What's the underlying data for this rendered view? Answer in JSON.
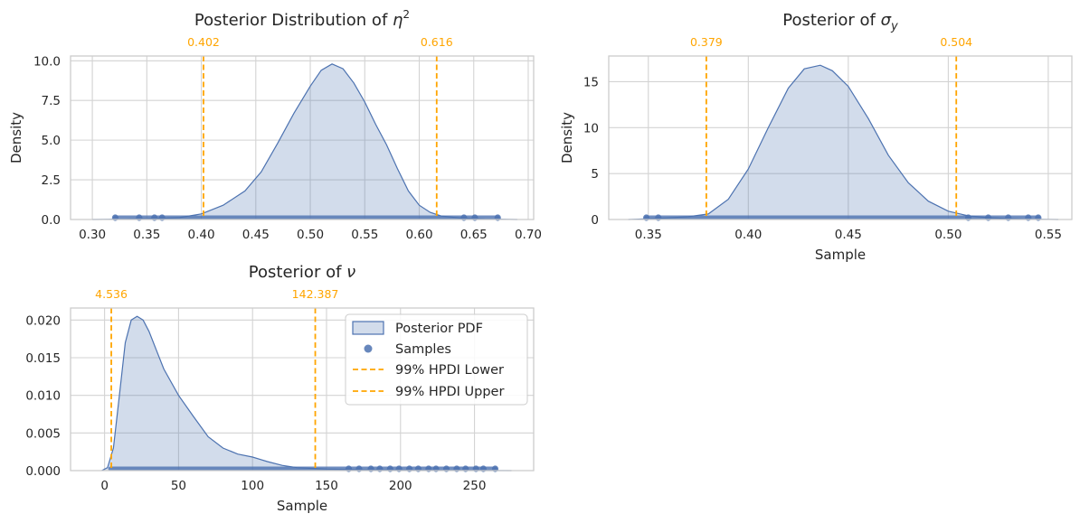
{
  "colors": {
    "fill": "#4C72B0",
    "line": "#4C72B0",
    "samples": "#4C72B0",
    "hpdi": "#FFA500",
    "grid": "#d3d3d3",
    "spine": "#cccccc"
  },
  "chart_data": [
    {
      "type": "area",
      "title": "Posterior Distribution of η²",
      "xlabel": "",
      "ylabel": "Density",
      "xlim": [
        0.28,
        0.705
      ],
      "ylim": [
        0,
        10.3
      ],
      "xticks": [
        0.3,
        0.35,
        0.4,
        0.45,
        0.5,
        0.55,
        0.6,
        0.65,
        0.7
      ],
      "xtick_labels": [
        "0.30",
        "0.35",
        "0.40",
        "0.45",
        "0.50",
        "0.55",
        "0.60",
        "0.65",
        "0.70"
      ],
      "yticks": [
        0,
        2.5,
        5,
        7.5,
        10
      ],
      "ytick_labels": [
        "0.0",
        "2.5",
        "5.0",
        "7.5",
        "10.0"
      ],
      "hpdi": [
        0.402,
        0.616
      ],
      "hpdi_labels": [
        "0.402",
        "0.616"
      ],
      "density": {
        "x": [
          0.3,
          0.33,
          0.36,
          0.38,
          0.4,
          0.42,
          0.44,
          0.455,
          0.47,
          0.485,
          0.5,
          0.51,
          0.52,
          0.53,
          0.54,
          0.55,
          0.56,
          0.57,
          0.58,
          0.59,
          0.6,
          0.61,
          0.62,
          0.64,
          0.66,
          0.69
        ],
        "y": [
          0.0,
          0.02,
          0.06,
          0.12,
          0.35,
          0.9,
          1.8,
          3.0,
          4.8,
          6.7,
          8.4,
          9.4,
          9.8,
          9.5,
          8.6,
          7.4,
          6.0,
          4.7,
          3.2,
          1.8,
          0.9,
          0.45,
          0.22,
          0.08,
          0.03,
          0.0
        ]
      },
      "samples_range": [
        0.321,
        0.672
      ],
      "samples_outliers": [
        0.321,
        0.343,
        0.357,
        0.364,
        0.641,
        0.651,
        0.672
      ]
    },
    {
      "type": "area",
      "title": "Posterior of σ_y",
      "xlabel": "Sample",
      "ylabel": "Density",
      "xlim": [
        0.3302,
        0.5618
      ],
      "ylim": [
        0,
        17.8
      ],
      "xticks": [
        0.35,
        0.4,
        0.45,
        0.5,
        0.55
      ],
      "xtick_labels": [
        "0.35",
        "0.40",
        "0.45",
        "0.50",
        "0.55"
      ],
      "yticks": [
        0,
        5,
        10,
        15
      ],
      "ytick_labels": [
        "0",
        "5",
        "10",
        "15"
      ],
      "hpdi": [
        0.379,
        0.504
      ],
      "hpdi_labels": [
        "0.379",
        "0.504"
      ],
      "density": {
        "x": [
          0.34,
          0.35,
          0.36,
          0.37,
          0.38,
          0.39,
          0.4,
          0.41,
          0.42,
          0.428,
          0.436,
          0.442,
          0.45,
          0.46,
          0.47,
          0.48,
          0.49,
          0.5,
          0.51,
          0.52,
          0.53,
          0.54,
          0.555
        ],
        "y": [
          0.0,
          0.08,
          0.18,
          0.3,
          0.6,
          2.2,
          5.5,
          10.0,
          14.3,
          16.4,
          16.8,
          16.2,
          14.5,
          11.0,
          7.0,
          4.0,
          2.0,
          0.9,
          0.4,
          0.2,
          0.1,
          0.04,
          0.0
        ]
      },
      "samples_range": [
        0.349,
        0.545
      ],
      "samples_outliers": [
        0.349,
        0.355,
        0.51,
        0.52,
        0.53,
        0.54,
        0.545
      ]
    },
    {
      "type": "area",
      "title": "Posterior of ν",
      "xlabel": "Sample",
      "ylabel": "",
      "xlim": [
        -23,
        290
      ],
      "ylim": [
        0,
        0.0216
      ],
      "xticks": [
        0,
        50,
        100,
        150,
        200,
        250
      ],
      "xtick_labels": [
        "0",
        "50",
        "100",
        "150",
        "200",
        "250"
      ],
      "yticks": [
        0,
        0.005,
        0.01,
        0.015,
        0.02
      ],
      "ytick_labels": [
        "0.000",
        "0.005",
        "0.010",
        "0.015",
        "0.020"
      ],
      "hpdi": [
        4.536,
        142.387
      ],
      "hpdi_labels": [
        "4.536",
        "142.387"
      ],
      "density": {
        "x": [
          -2,
          2,
          6,
          10,
          14,
          18,
          22,
          26,
          30,
          35,
          40,
          50,
          60,
          70,
          80,
          90,
          100,
          110,
          120,
          130,
          140,
          150,
          175,
          200,
          230,
          275
        ],
        "y": [
          0.0,
          0.0004,
          0.003,
          0.01,
          0.017,
          0.02,
          0.0205,
          0.02,
          0.0185,
          0.016,
          0.0135,
          0.01,
          0.0072,
          0.0045,
          0.003,
          0.0022,
          0.0018,
          0.0012,
          0.0007,
          0.0004,
          0.0003,
          0.0002,
          0.0001,
          6e-05,
          3e-05,
          0.0
        ]
      },
      "samples_range": [
        4,
        264
      ],
      "samples_outliers": [
        165,
        172,
        180,
        186,
        193,
        199,
        206,
        212,
        219,
        224,
        231,
        238,
        244,
        251,
        256,
        264
      ]
    }
  ],
  "legend": {
    "placement": "upper-right",
    "entries": [
      "Posterior PDF",
      "Samples",
      "99% HPDI Lower",
      "99% HPDI Upper"
    ]
  }
}
